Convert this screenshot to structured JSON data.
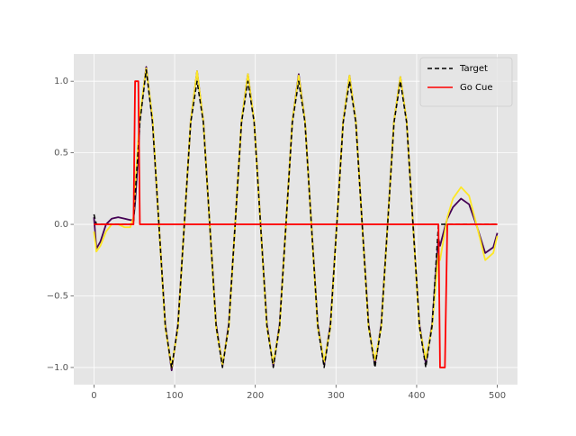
{
  "chart_data": {
    "type": "line",
    "x": [
      0,
      3,
      8,
      15,
      22,
      30,
      38,
      45,
      49,
      51,
      55,
      56.9,
      64.8,
      72.6,
      80.5,
      88.4,
      96.3,
      104.1,
      112,
      119.9,
      127.8,
      135.6,
      143.5,
      151.4,
      159.3,
      167.1,
      175,
      182.9,
      190.8,
      198.6,
      206.5,
      214.4,
      222.3,
      230.1,
      238,
      245.9,
      253.8,
      261.6,
      269.5,
      277.4,
      285.3,
      293.1,
      301,
      308.9,
      316.8,
      324.6,
      332.5,
      340.4,
      348.3,
      356.1,
      364,
      371.9,
      379.8,
      387.6,
      395.5,
      403.4,
      411.3,
      419.1,
      427,
      429,
      435,
      438,
      445,
      455,
      465,
      475,
      485,
      495,
      500
    ],
    "series": [
      {
        "name": "Target",
        "color": "#000000",
        "dash": true,
        "values": [
          0.07,
          0,
          0,
          0,
          0,
          0,
          0,
          0,
          0,
          0.2,
          0.54,
          0.71,
          1.08,
          0.71,
          0,
          -0.71,
          -1,
          -0.71,
          0,
          0.71,
          1,
          0.71,
          0,
          -0.71,
          -1,
          -0.71,
          0,
          0.71,
          1,
          0.71,
          0,
          -0.71,
          -1,
          -0.71,
          0,
          0.71,
          1,
          0.71,
          0,
          -0.71,
          -1,
          -0.71,
          0,
          0.71,
          1,
          0.71,
          0,
          -0.71,
          -1,
          -0.71,
          0,
          0.71,
          1,
          0.71,
          0,
          -0.71,
          -1,
          -0.71,
          0,
          0,
          0,
          0,
          0,
          0,
          0,
          0,
          0,
          0,
          0
        ]
      },
      {
        "color": "#440154",
        "values": [
          0.05,
          -0.17,
          -0.12,
          0,
          0.04,
          0.05,
          0.04,
          0.03,
          0.03,
          0.15,
          0.5,
          0.74,
          1.1,
          0.72,
          0,
          -0.7,
          -1.02,
          -0.7,
          0,
          0.72,
          1.07,
          0.72,
          0,
          -0.7,
          -0.99,
          -0.7,
          0,
          0.72,
          1.05,
          0.72,
          0,
          -0.7,
          -0.99,
          -0.7,
          0,
          0.72,
          1.05,
          0.72,
          0,
          -0.7,
          -0.98,
          -0.7,
          0,
          0.72,
          1.04,
          0.72,
          0,
          -0.7,
          -0.98,
          -0.7,
          0,
          0.72,
          1.03,
          0.72,
          0,
          -0.7,
          -0.97,
          -0.7,
          -0.1,
          -0.15,
          -0.02,
          0.04,
          0.12,
          0.18,
          0.14,
          -0.02,
          -0.2,
          -0.16,
          -0.06
        ]
      },
      {
        "color": "#fde725",
        "values": [
          -0.05,
          -0.19,
          -0.15,
          -0.05,
          0,
          0,
          -0.02,
          -0.02,
          0.05,
          0.25,
          0.6,
          0.76,
          1.09,
          0.74,
          0,
          -0.72,
          -1,
          -0.72,
          0,
          0.72,
          1.07,
          0.72,
          0,
          -0.72,
          -0.98,
          -0.72,
          0,
          0.72,
          1.05,
          0.72,
          0,
          -0.72,
          -0.97,
          -0.72,
          0,
          0.72,
          1.04,
          0.72,
          0,
          -0.72,
          -0.96,
          -0.72,
          0,
          0.72,
          1.04,
          0.72,
          0,
          -0.72,
          -0.95,
          -0.72,
          0,
          0.72,
          1.03,
          0.72,
          0,
          -0.72,
          -0.94,
          -0.72,
          -0.2,
          -0.25,
          -0.05,
          0.05,
          0.18,
          0.26,
          0.2,
          -0.02,
          -0.25,
          -0.2,
          -0.08
        ]
      },
      {
        "name": "Go Cue",
        "color": "#ff0000",
        "values": [
          0,
          0,
          0,
          0,
          0,
          0,
          0,
          0,
          0,
          1,
          1,
          0,
          0,
          0,
          0,
          0,
          0,
          0,
          0,
          0,
          0,
          0,
          0,
          0,
          0,
          0,
          0,
          0,
          0,
          0,
          0,
          0,
          0,
          0,
          0,
          0,
          0,
          0,
          0,
          0,
          0,
          0,
          0,
          0,
          0,
          0,
          0,
          0,
          0,
          0,
          0,
          0,
          0,
          0,
          0,
          0,
          0,
          0,
          0,
          -1,
          -1,
          0,
          0,
          0,
          0,
          0,
          0,
          0,
          0
        ]
      }
    ],
    "xlim": [
      -25,
      525
    ],
    "ylim": [
      -1.12,
      1.19
    ],
    "xticks": [
      0,
      100,
      200,
      300,
      400,
      500
    ],
    "yticks": [
      {
        "value": -1,
        "label": "−1.0"
      },
      {
        "value": -0.5,
        "label": "−0.5"
      },
      {
        "value": 0,
        "label": "0.0"
      },
      {
        "value": 0.5,
        "label": "0.5"
      },
      {
        "value": 1,
        "label": "1.0"
      }
    ],
    "grid": true,
    "legend": "upper right"
  }
}
